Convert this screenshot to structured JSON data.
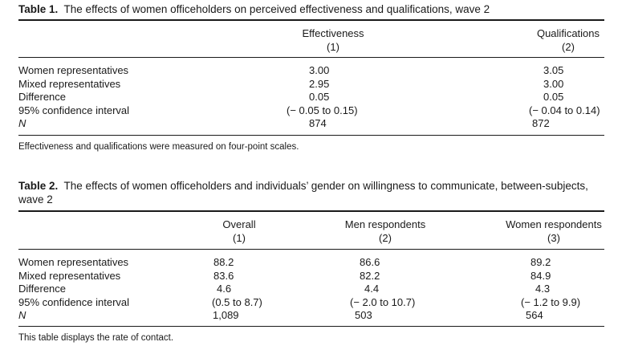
{
  "table1": {
    "label": "Table 1.",
    "title": "The effects of women officeholders on perceived effectiveness and qualifications, wave 2",
    "columns": [
      {
        "name": "Effectiveness",
        "num": "(1)"
      },
      {
        "name": "Qualifications",
        "num": "(2)"
      }
    ],
    "rows": [
      {
        "label": "Women representatives",
        "values": [
          "3.00",
          "3.05"
        ]
      },
      {
        "label": "Mixed representatives",
        "values": [
          "2.95",
          "3.00"
        ]
      },
      {
        "label": "Difference",
        "values": [
          "0.05",
          "0.05"
        ]
      },
      {
        "label": "95% confidence interval",
        "values": [
          "(− 0.05 to 0.15)",
          "(− 0.04 to 0.14)"
        ]
      },
      {
        "label": "N",
        "values": [
          "874",
          "872"
        ]
      }
    ],
    "note": "Effectiveness and qualifications were measured on four-point scales."
  },
  "table2": {
    "label": "Table 2.",
    "title_line1": "The effects of women officeholders and individuals’ gender on willingness to communicate, between-subjects,",
    "title_line2": "wave 2",
    "columns": [
      {
        "name": "Overall",
        "num": "(1)"
      },
      {
        "name": "Men respondents",
        "num": "(2)"
      },
      {
        "name": "Women respondents",
        "num": "(3)"
      }
    ],
    "rows": [
      {
        "label": "Women representatives",
        "values": [
          "88.2",
          "86.6",
          "89.2"
        ]
      },
      {
        "label": "Mixed representatives",
        "values": [
          "83.6",
          "82.2",
          "84.9"
        ]
      },
      {
        "label": "Difference",
        "values": [
          "4.6",
          "4.4",
          "4.3"
        ]
      },
      {
        "label": "95% confidence interval",
        "values": [
          "(0.5 to 8.7)",
          "(− 2.0 to 10.7)",
          "(− 1.2 to 9.9)"
        ]
      },
      {
        "label": "N",
        "values": [
          "1,089",
          "503",
          "564"
        ]
      }
    ],
    "note": "This table displays the rate of contact."
  }
}
